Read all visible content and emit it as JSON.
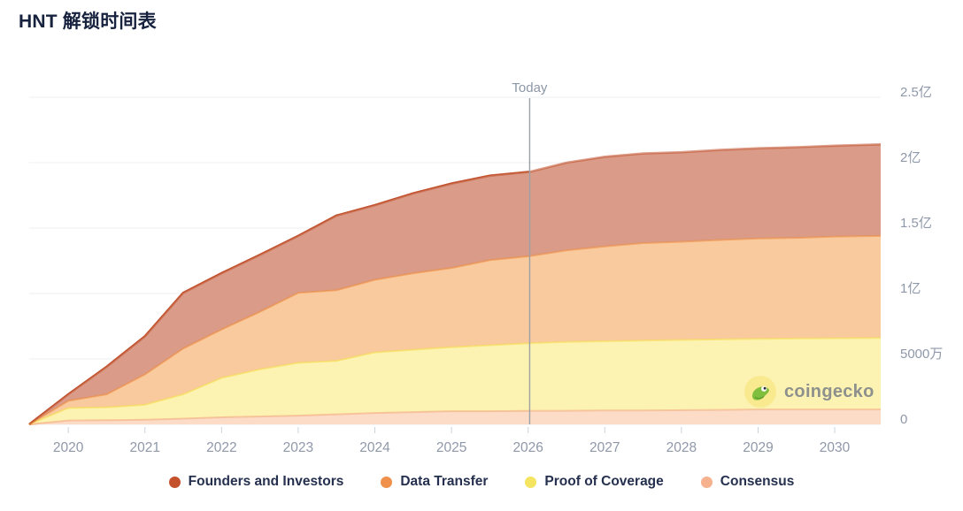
{
  "page": {
    "title": "HNT 解锁时间表"
  },
  "watermark": {
    "text": "coingecko"
  },
  "legend": {
    "items": [
      {
        "label": "Founders and Investors",
        "color": "#c4502c"
      },
      {
        "label": "Data Transfer",
        "color": "#f0914b"
      },
      {
        "label": "Proof of Coverage",
        "color": "#f4e45f"
      },
      {
        "label": "Consensus",
        "color": "#f6b28e"
      }
    ]
  },
  "chart_data": {
    "type": "area",
    "stacked": true,
    "title": "HNT 解锁时间表",
    "xlabel": "",
    "ylabel": "",
    "y_unit": "HNT tokens (values in millions; 亿 = 100M, 万 = 10K)",
    "ylim_millions": [
      0,
      250
    ],
    "grid": true,
    "legend_position": "bottom",
    "x": [
      2019.49,
      2020,
      2020.5,
      2021,
      2021.5,
      2022,
      2022.5,
      2023,
      2023.5,
      2024,
      2024.5,
      2025,
      2025.5,
      2026.02,
      2026.5,
      2027,
      2027.5,
      2028,
      2028.5,
      2029,
      2029.5,
      2030,
      2030.6
    ],
    "series_note": "stacked bottom-to-top, cumulative unlocked supply in millions of HNT",
    "series": [
      {
        "name": "Consensus",
        "stroke": "#f3a77f",
        "fill_past": "#facbab",
        "fill_future": "#fcdcc6",
        "values": [
          0,
          3,
          3.2,
          3.6,
          4.4,
          5.4,
          6,
          6.7,
          7.7,
          8.7,
          9.4,
          10.1,
          10.1,
          10.3,
          10.4,
          10.7,
          10.7,
          10.9,
          11.1,
          11.4,
          11.4,
          11.4,
          11.4
        ]
      },
      {
        "name": "Proof of Coverage",
        "stroke": "#f6df4f",
        "fill_past": "#faec92",
        "fill_future": "#fcf3b2",
        "values": [
          0,
          9.5,
          9.8,
          11.3,
          18.6,
          30.1,
          36,
          40.3,
          40.8,
          46.3,
          47.6,
          48.9,
          50.4,
          51.7,
          52.6,
          52.8,
          53.3,
          53.6,
          53.8,
          54,
          54.2,
          54.4,
          54.6
        ]
      },
      {
        "name": "Data Transfer",
        "stroke": "#ef8c3e",
        "fill_past": "#f4b177",
        "fill_future": "#f8ca9e",
        "values": [
          0,
          5.5,
          10,
          23.3,
          35,
          37,
          44,
          53.5,
          54,
          55.5,
          58.5,
          60.5,
          65,
          66.5,
          70,
          72.5,
          74.5,
          75,
          76,
          76.6,
          76.9,
          77.7,
          78
        ]
      },
      {
        "name": "Founders and Investors",
        "stroke": "#c1512c",
        "fill_past": "#ce8166",
        "fill_future": "#da9c88",
        "values": [
          0,
          5,
          21,
          29,
          42.5,
          43,
          43.5,
          43.5,
          57,
          57,
          61,
          64.5,
          64.5,
          64.5,
          67,
          68.5,
          68.5,
          68.5,
          68.8,
          69,
          69.3,
          69.5,
          70
        ]
      }
    ],
    "x_ticks": [
      {
        "value": 2020,
        "label": "2020"
      },
      {
        "value": 2021,
        "label": "2021"
      },
      {
        "value": 2022,
        "label": "2022"
      },
      {
        "value": 2023,
        "label": "2023"
      },
      {
        "value": 2024,
        "label": "2024"
      },
      {
        "value": 2025,
        "label": "2025"
      },
      {
        "value": 2026,
        "label": "2026"
      },
      {
        "value": 2027,
        "label": "2027"
      },
      {
        "value": 2028,
        "label": "2028"
      },
      {
        "value": 2029,
        "label": "2029"
      },
      {
        "value": 2030,
        "label": "2030"
      }
    ],
    "y_ticks": [
      {
        "value_millions": 0,
        "label": "0"
      },
      {
        "value_millions": 50,
        "label": "5000万"
      },
      {
        "value_millions": 100,
        "label": "1亿"
      },
      {
        "value_millions": 150,
        "label": "1.5亿"
      },
      {
        "value_millions": 200,
        "label": "2亿"
      },
      {
        "value_millions": 250,
        "label": "2.5亿"
      }
    ],
    "today": {
      "x": 2026.02,
      "label": "Today"
    },
    "colors": {
      "grid": "#edeff2",
      "axis": "#e8ebef",
      "tick": "#ccd3db",
      "axis_label": "#8f98a9",
      "today_line": "#9ca1a9",
      "today_label": "#8c96a6"
    }
  }
}
